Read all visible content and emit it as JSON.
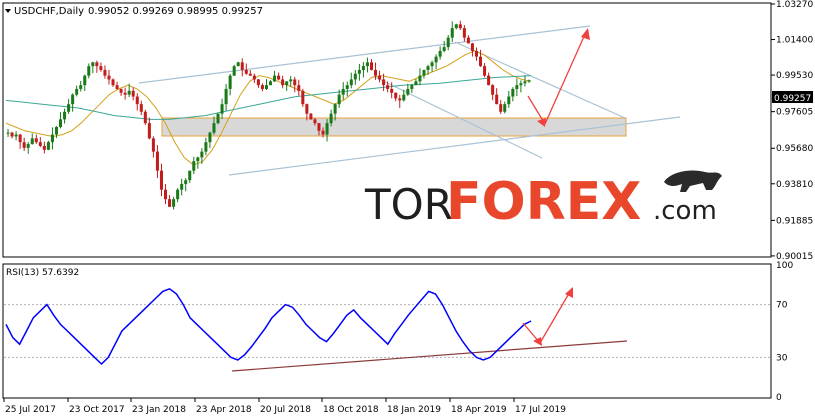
{
  "chart_data": [
    {
      "type": "candlestick",
      "title": "USDCHF,Daily",
      "ohlc_header": "0.99052 0.99269 0.98995 0.99257",
      "x_tick_labels": [
        "25 Jul 2017",
        "23 Oct 2017",
        "23 Jan 2018",
        "23 Apr 2018",
        "20 Jul 2018",
        "18 Oct 2018",
        "18 Jan 2019",
        "18 Apr 2019",
        "17 Jul 2019"
      ],
      "y_tick_labels": [
        "1.03270",
        "1.01400",
        "0.99530",
        "0.97605",
        "0.95680",
        "0.93810",
        "0.91885",
        "0.90015"
      ],
      "ylim": [
        0.9001,
        1.0327
      ],
      "current_price_label": "0.99257",
      "close_series": [
        0.965,
        0.963,
        0.964,
        0.96,
        0.957,
        0.959,
        0.962,
        0.96,
        0.958,
        0.956,
        0.96,
        0.964,
        0.968,
        0.972,
        0.976,
        0.98,
        0.985,
        0.988,
        0.99,
        0.995,
        1.0,
        1.002,
        1.0,
        0.998,
        0.995,
        0.993,
        0.99,
        0.988,
        0.986,
        0.985,
        0.987,
        0.984,
        0.98,
        0.976,
        0.97,
        0.962,
        0.955,
        0.945,
        0.935,
        0.93,
        0.926,
        0.93,
        0.935,
        0.938,
        0.94,
        0.945,
        0.95,
        0.952,
        0.955,
        0.96,
        0.965,
        0.97,
        0.975,
        0.98,
        0.988,
        0.995,
        1.0,
        1.002,
        0.998,
        0.996,
        0.995,
        0.993,
        0.99,
        0.988,
        0.99,
        0.992,
        0.995,
        0.993,
        0.99,
        0.992,
        0.993,
        0.99,
        0.987,
        0.98,
        0.975,
        0.972,
        0.97,
        0.966,
        0.964,
        0.97,
        0.975,
        0.98,
        0.985,
        0.988,
        0.99,
        0.993,
        0.996,
        0.998,
        1.0,
        1.002,
        0.998,
        0.995,
        0.993,
        0.99,
        0.988,
        0.986,
        0.983,
        0.982,
        0.985,
        0.988,
        0.99,
        0.992,
        0.995,
        0.998,
        1.0,
        1.002,
        1.005,
        1.008,
        1.01,
        1.015,
        1.02,
        1.022,
        1.02,
        1.015,
        1.012,
        1.008,
        1.005,
        1.0,
        0.995,
        0.99,
        0.985,
        0.98,
        0.976,
        0.98,
        0.984,
        0.988,
        0.99,
        0.991,
        0.992,
        0.9926
      ],
      "ma_series": [
        {
          "name": "MA fast",
          "color": "#d4a017",
          "values": [
            0.97,
            0.968,
            0.966,
            0.965,
            0.964,
            0.963,
            0.964,
            0.966,
            0.97,
            0.975,
            0.98,
            0.985,
            0.988,
            0.99,
            0.988,
            0.984,
            0.978,
            0.97,
            0.96,
            0.952,
            0.948,
            0.95,
            0.956,
            0.965,
            0.975,
            0.985,
            0.992,
            0.995,
            0.994,
            0.992,
            0.99,
            0.988,
            0.986,
            0.984,
            0.982,
            0.98,
            0.982,
            0.986,
            0.99,
            0.994,
            0.995,
            0.994,
            0.993,
            0.992,
            0.994,
            0.996,
            0.998,
            1.0,
            1.003,
            1.006,
            1.008,
            1.006,
            1.002,
            0.998,
            0.995,
            0.993,
            0.992
          ]
        },
        {
          "name": "MA slow",
          "color": "#3aa89a",
          "values": [
            0.982,
            0.981,
            0.98,
            0.979,
            0.978,
            0.976,
            0.974,
            0.973,
            0.972,
            0.972,
            0.973,
            0.974,
            0.976,
            0.978,
            0.98,
            0.982,
            0.984,
            0.985,
            0.986,
            0.987,
            0.988,
            0.989,
            0.99,
            0.9905,
            0.991,
            0.992,
            0.993,
            0.994,
            0.9945,
            0.995
          ]
        }
      ]
    },
    {
      "type": "line",
      "title": "RSI(13) 57.6392",
      "ylim": [
        0,
        100
      ],
      "y_tick_labels": [
        "100",
        "70",
        "30",
        "0"
      ],
      "series": [
        {
          "name": "RSI(13)",
          "color": "#0000ff",
          "values": [
            55,
            45,
            40,
            50,
            60,
            65,
            70,
            62,
            55,
            50,
            45,
            40,
            35,
            30,
            25,
            30,
            40,
            50,
            55,
            60,
            65,
            70,
            75,
            80,
            82,
            78,
            70,
            60,
            55,
            50,
            45,
            40,
            35,
            30,
            28,
            32,
            38,
            45,
            52,
            60,
            65,
            70,
            68,
            62,
            55,
            50,
            45,
            42,
            48,
            55,
            62,
            66,
            60,
            55,
            50,
            45,
            40,
            48,
            55,
            62,
            68,
            74,
            80,
            78,
            70,
            60,
            50,
            42,
            35,
            30,
            28,
            30,
            35,
            40,
            45,
            50,
            55,
            57.6
          ]
        }
      ]
    }
  ]
}
